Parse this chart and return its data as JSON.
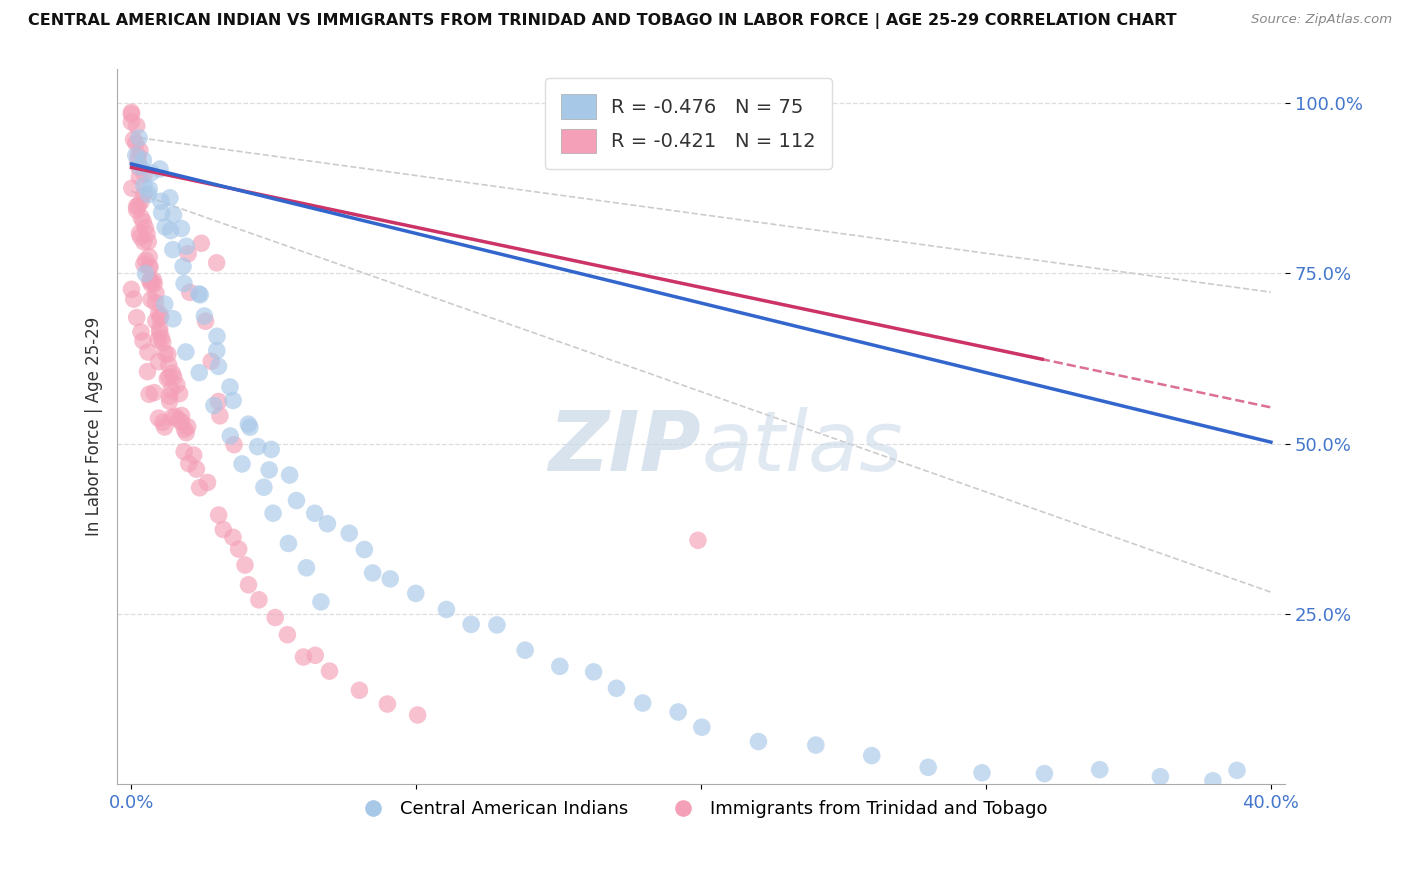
{
  "title": "CENTRAL AMERICAN INDIAN VS IMMIGRANTS FROM TRINIDAD AND TOBAGO IN LABOR FORCE | AGE 25-29 CORRELATION CHART",
  "source": "Source: ZipAtlas.com",
  "ylabel": "In Labor Force | Age 25-29",
  "xlim": [
    0.0,
    0.4
  ],
  "ylim": [
    0.0,
    1.0
  ],
  "blue_R": -0.476,
  "blue_N": 75,
  "pink_R": -0.421,
  "pink_N": 112,
  "blue_color": "#a8c8e8",
  "pink_color": "#f4a0b8",
  "blue_line_color": "#3366cc",
  "pink_line_color": "#cc3366",
  "ci_color": "#cccccc",
  "watermark_color": "#c8d8e8",
  "grid_color": "#dddddd",
  "background_color": "#ffffff",
  "bottom_legend_labels": [
    "Central American Indians",
    "Immigrants from Trinidad and Tobago"
  ],
  "blue_scatter_x": [
    0.001,
    0.002,
    0.003,
    0.004,
    0.005,
    0.006,
    0.007,
    0.008,
    0.009,
    0.01,
    0.011,
    0.012,
    0.013,
    0.014,
    0.015,
    0.016,
    0.017,
    0.018,
    0.019,
    0.02,
    0.022,
    0.024,
    0.026,
    0.028,
    0.03,
    0.032,
    0.035,
    0.038,
    0.04,
    0.042,
    0.045,
    0.048,
    0.05,
    0.055,
    0.06,
    0.065,
    0.07,
    0.075,
    0.08,
    0.085,
    0.09,
    0.1,
    0.11,
    0.12,
    0.13,
    0.14,
    0.15,
    0.16,
    0.17,
    0.18,
    0.19,
    0.2,
    0.22,
    0.24,
    0.26,
    0.28,
    0.3,
    0.32,
    0.34,
    0.36,
    0.38,
    0.39,
    0.005,
    0.01,
    0.015,
    0.02,
    0.025,
    0.03,
    0.035,
    0.04,
    0.045,
    0.05,
    0.055,
    0.06,
    0.065
  ],
  "blue_scatter_y": [
    0.95,
    0.92,
    0.9,
    0.88,
    0.93,
    0.86,
    0.89,
    0.87,
    0.91,
    0.84,
    0.86,
    0.82,
    0.85,
    0.8,
    0.83,
    0.78,
    0.81,
    0.76,
    0.79,
    0.74,
    0.72,
    0.7,
    0.68,
    0.66,
    0.64,
    0.62,
    0.58,
    0.56,
    0.54,
    0.52,
    0.5,
    0.48,
    0.46,
    0.44,
    0.42,
    0.4,
    0.38,
    0.36,
    0.34,
    0.32,
    0.3,
    0.28,
    0.26,
    0.24,
    0.22,
    0.2,
    0.18,
    0.16,
    0.14,
    0.12,
    0.1,
    0.08,
    0.06,
    0.05,
    0.04,
    0.03,
    0.02,
    0.02,
    0.02,
    0.02,
    0.02,
    0.02,
    0.76,
    0.72,
    0.68,
    0.64,
    0.6,
    0.56,
    0.52,
    0.48,
    0.44,
    0.4,
    0.36,
    0.32,
    0.28
  ],
  "pink_scatter_x": [
    0.0,
    0.0,
    0.0,
    0.001,
    0.001,
    0.001,
    0.002,
    0.002,
    0.002,
    0.002,
    0.003,
    0.003,
    0.003,
    0.003,
    0.004,
    0.004,
    0.004,
    0.005,
    0.005,
    0.005,
    0.005,
    0.006,
    0.006,
    0.006,
    0.007,
    0.007,
    0.007,
    0.008,
    0.008,
    0.008,
    0.009,
    0.009,
    0.01,
    0.01,
    0.01,
    0.011,
    0.011,
    0.012,
    0.012,
    0.013,
    0.013,
    0.014,
    0.014,
    0.015,
    0.015,
    0.016,
    0.017,
    0.018,
    0.019,
    0.02,
    0.02,
    0.022,
    0.023,
    0.025,
    0.027,
    0.03,
    0.032,
    0.035,
    0.038,
    0.04,
    0.042,
    0.045,
    0.05,
    0.055,
    0.06,
    0.065,
    0.07,
    0.08,
    0.09,
    0.1,
    0.0,
    0.001,
    0.002,
    0.003,
    0.004,
    0.005,
    0.006,
    0.007,
    0.008,
    0.009,
    0.01,
    0.011,
    0.012,
    0.013,
    0.014,
    0.015,
    0.016,
    0.017,
    0.018,
    0.019,
    0.02,
    0.022,
    0.025,
    0.028,
    0.03,
    0.032,
    0.035,
    0.025,
    0.03,
    0.2,
    0.0,
    0.001,
    0.002,
    0.003,
    0.004,
    0.005,
    0.006,
    0.007,
    0.008,
    0.009,
    0.01,
    0.011
  ],
  "pink_scatter_y": [
    1.0,
    0.98,
    0.96,
    0.94,
    0.97,
    0.92,
    0.95,
    0.9,
    0.93,
    0.88,
    0.91,
    0.86,
    0.89,
    0.84,
    0.87,
    0.82,
    0.85,
    0.8,
    0.83,
    0.78,
    0.81,
    0.76,
    0.79,
    0.74,
    0.77,
    0.72,
    0.75,
    0.7,
    0.73,
    0.68,
    0.71,
    0.66,
    0.69,
    0.64,
    0.67,
    0.62,
    0.65,
    0.6,
    0.63,
    0.58,
    0.61,
    0.56,
    0.59,
    0.54,
    0.57,
    0.52,
    0.55,
    0.5,
    0.53,
    0.48,
    0.51,
    0.46,
    0.49,
    0.44,
    0.42,
    0.4,
    0.38,
    0.36,
    0.34,
    0.32,
    0.3,
    0.28,
    0.24,
    0.22,
    0.2,
    0.18,
    0.16,
    0.14,
    0.12,
    0.1,
    0.88,
    0.86,
    0.84,
    0.82,
    0.8,
    0.78,
    0.76,
    0.74,
    0.72,
    0.7,
    0.68,
    0.66,
    0.64,
    0.62,
    0.6,
    0.58,
    0.56,
    0.54,
    0.52,
    0.5,
    0.78,
    0.74,
    0.68,
    0.62,
    0.58,
    0.54,
    0.5,
    0.8,
    0.76,
    0.35,
    0.73,
    0.71,
    0.69,
    0.67,
    0.65,
    0.63,
    0.61,
    0.59,
    0.57,
    0.55,
    0.53,
    0.51
  ]
}
